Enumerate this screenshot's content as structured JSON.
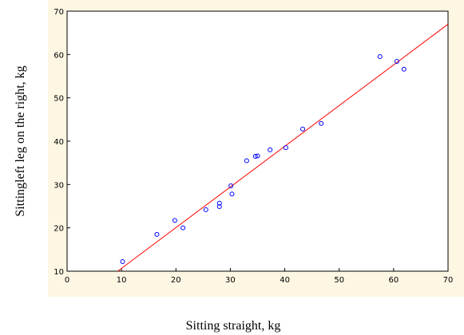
{
  "chart_data": {
    "type": "scatter",
    "x_label": "Sitting straight, kg",
    "y_label": "Sittingleft leg on the right, kg",
    "xlim": [
      0,
      70
    ],
    "xticks": [
      0,
      10,
      20,
      30,
      40,
      50,
      60,
      70
    ],
    "ylim": [
      10,
      70
    ],
    "yticks": [
      10,
      20,
      30,
      40,
      50,
      60,
      70
    ],
    "points": {
      "color": "#0000ff",
      "x": [
        10.2,
        16.5,
        19.8,
        21.3,
        25.5,
        28,
        28,
        30.1,
        30.3,
        33,
        34.6,
        35,
        37.3,
        40.2,
        43.3,
        46.7,
        57.5,
        60.6,
        61.9
      ],
      "y": [
        12.2,
        18.5,
        21.7,
        20.0,
        24.2,
        25.7,
        24.9,
        29.7,
        27.8,
        35.5,
        36.5,
        36.6,
        38,
        38.5,
        42.8,
        44.1,
        59.5,
        58.4,
        56.6
      ]
    },
    "fit_line": {
      "color": "#ff0000",
      "x": [
        9.3,
        70
      ],
      "y": [
        10,
        67
      ]
    }
  }
}
